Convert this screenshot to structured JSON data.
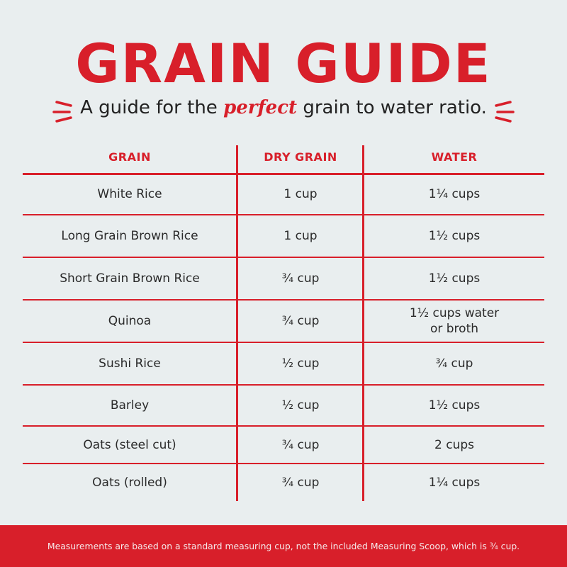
{
  "title": "GRAIN GUIDE",
  "subtitle": {
    "before": "A guide for the ",
    "emphasis": "perfect",
    "after": " grain to water ratio."
  },
  "accent_color": "#d81f2a",
  "background_color": "#e9eeef",
  "table": {
    "headers": [
      "GRAIN",
      "DRY GRAIN",
      "WATER"
    ],
    "rows": [
      [
        "White Rice",
        "1 cup",
        "1¼ cups"
      ],
      [
        "Long Grain Brown Rice",
        "1 cup",
        "1½ cups"
      ],
      [
        "Short Grain Brown Rice",
        "¾ cup",
        "1½ cups"
      ],
      [
        "Quinoa",
        "¾ cup",
        "1½ cups water\nor broth"
      ],
      [
        "Sushi Rice",
        "½ cup",
        "¾ cup"
      ],
      [
        "Barley",
        "½ cup",
        "1½ cups"
      ],
      [
        "Oats (steel cut)",
        "¾ cup",
        "2 cups"
      ],
      [
        "Oats (rolled)",
        "¾ cup",
        "1¼ cups"
      ]
    ]
  },
  "footer": "Measurements are based on a standard measuring cup, not the included Measuring Scoop, which is ¾ cup."
}
